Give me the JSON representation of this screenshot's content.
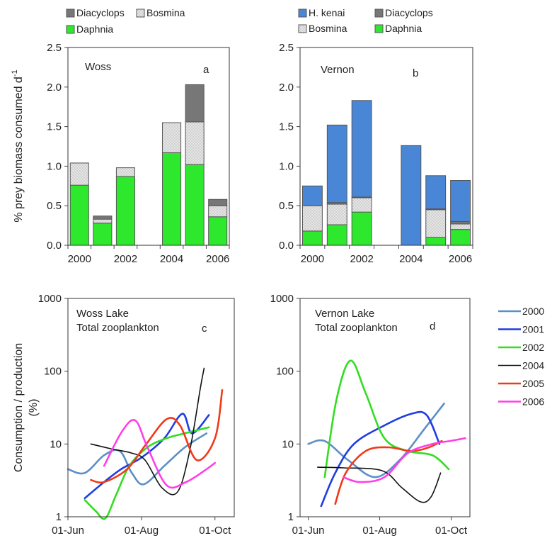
{
  "chart_data": [
    {
      "id": "a",
      "type": "bar",
      "stacked": true,
      "annotation": "Woss",
      "panel_letter": "a",
      "ylabel": "% prey biomass consumed d",
      "ylabel_sup": "-1",
      "ylim": [
        0,
        2.5
      ],
      "yticks": [
        "0.0",
        "0.5",
        "1.0",
        "1.5",
        "2.0",
        "2.5"
      ],
      "xlabels": [
        "2000",
        "2002",
        "2004",
        "2006"
      ],
      "categories": [
        "2000",
        "2001",
        "2002",
        "2003",
        "2004",
        "2005",
        "2006"
      ],
      "legend": [
        {
          "name": "Diacyclops",
          "key": "diacyclops"
        },
        {
          "name": "Bosmina",
          "key": "bosmina"
        },
        {
          "name": "Daphnia",
          "key": "daphnia"
        }
      ],
      "series": [
        {
          "name": "Daphnia",
          "key": "daphnia",
          "values": [
            0.76,
            0.28,
            0.87,
            0,
            1.17,
            1.02,
            0.36
          ]
        },
        {
          "name": "Bosmina",
          "key": "bosmina",
          "values": [
            0.28,
            0.05,
            0.11,
            0,
            0.38,
            0.54,
            0.14
          ]
        },
        {
          "name": "Diacyclops",
          "key": "diacyclops",
          "values": [
            0,
            0.04,
            0,
            0,
            0,
            0.47,
            0.08
          ]
        }
      ]
    },
    {
      "id": "b",
      "type": "bar",
      "stacked": true,
      "annotation": "Vernon",
      "panel_letter": "b",
      "ylim": [
        0,
        2.5
      ],
      "yticks": [
        "0.0",
        "0.5",
        "1.0",
        "1.5",
        "2.0",
        "2.5"
      ],
      "xlabels": [
        "2000",
        "2002",
        "2004",
        "2006"
      ],
      "categories": [
        "2000",
        "2001",
        "2002",
        "2003",
        "2004",
        "2005",
        "2006"
      ],
      "legend": [
        {
          "name": "H. kenai",
          "key": "hkenai"
        },
        {
          "name": "Diacyclops",
          "key": "diacyclops"
        },
        {
          "name": "Bosmina",
          "key": "bosmina"
        },
        {
          "name": "Daphnia",
          "key": "daphnia"
        }
      ],
      "series": [
        {
          "name": "Daphnia",
          "key": "daphnia",
          "values": [
            0.18,
            0.26,
            0.42,
            0,
            0,
            0.1,
            0.2
          ]
        },
        {
          "name": "Bosmina",
          "key": "bosmina",
          "values": [
            0.32,
            0.26,
            0.18,
            0,
            0,
            0.35,
            0.07
          ]
        },
        {
          "name": "Diacyclops",
          "key": "diacyclops",
          "values": [
            0,
            0.02,
            0.01,
            0,
            0,
            0.01,
            0.03
          ]
        },
        {
          "name": "H. kenai",
          "key": "hkenai",
          "values": [
            0.25,
            0.98,
            1.22,
            0,
            1.26,
            0.42,
            0.52
          ]
        }
      ]
    },
    {
      "id": "c",
      "type": "line",
      "yscale": "log",
      "annotation": [
        "Woss Lake",
        "Total zooplankton"
      ],
      "panel_letter": "c",
      "ylabel": "Consumption / production",
      "ylabel2": "(%)",
      "ylim": [
        1,
        1000
      ],
      "yticks": [
        "1",
        "10",
        "100",
        "1000"
      ],
      "xticks": [
        "01-Jun",
        "01-Aug",
        "01-Oct"
      ],
      "x_range": [
        "2000-06-01",
        "2000-10-17"
      ],
      "series": [
        {
          "name": "2000",
          "color": "#5b8fc7",
          "points": [
            [
              "2000-06-01",
              4.5
            ],
            [
              "2000-06-15",
              4
            ],
            [
              "2000-07-01",
              7
            ],
            [
              "2000-07-14",
              8
            ],
            [
              "2000-07-24",
              4
            ],
            [
              "2000-08-03",
              2.8
            ],
            [
              "2000-08-20",
              5
            ],
            [
              "2000-09-06",
              9
            ],
            [
              "2000-09-24",
              14
            ]
          ]
        },
        {
          "name": "2001",
          "color": "#1f3de0",
          "points": [
            [
              "2000-06-15",
              1.8
            ],
            [
              "2000-07-01",
              3
            ],
            [
              "2000-07-15",
              4.5
            ],
            [
              "2000-08-01",
              6.5
            ],
            [
              "2000-08-20",
              12
            ],
            [
              "2000-09-04",
              26
            ],
            [
              "2000-09-12",
              14
            ],
            [
              "2000-09-26",
              25
            ]
          ]
        },
        {
          "name": "2002",
          "color": "#33dd22",
          "points": [
            [
              "2000-06-15",
              1.7
            ],
            [
              "2000-06-24",
              1.2
            ],
            [
              "2000-07-02",
              0.95
            ],
            [
              "2000-07-11",
              2
            ],
            [
              "2000-07-22",
              5
            ],
            [
              "2000-08-06",
              9
            ],
            [
              "2000-08-22",
              12
            ],
            [
              "2000-09-06",
              14
            ],
            [
              "2000-09-26",
              17
            ]
          ]
        },
        {
          "name": "2004",
          "color": "#111111",
          "points": [
            [
              "2000-06-20",
              10
            ],
            [
              "2000-07-08",
              8.5
            ],
            [
              "2000-07-24",
              7.5
            ],
            [
              "2000-08-04",
              6
            ],
            [
              "2000-08-18",
              2.5
            ],
            [
              "2000-08-31",
              2.2
            ],
            [
              "2000-09-10",
              8
            ],
            [
              "2000-09-19",
              60
            ],
            [
              "2000-09-22",
              110
            ]
          ]
        },
        {
          "name": "2005",
          "color": "#f03a1a",
          "points": [
            [
              "2000-06-20",
              3.2
            ],
            [
              "2000-07-01",
              3
            ],
            [
              "2000-07-20",
              4.5
            ],
            [
              "2000-08-05",
              10
            ],
            [
              "2000-08-22",
              22
            ],
            [
              "2000-09-02",
              18
            ],
            [
              "2000-09-16",
              6
            ],
            [
              "2000-10-01",
              12
            ],
            [
              "2000-10-07",
              55
            ]
          ]
        },
        {
          "name": "2006",
          "color": "#ff3ee8",
          "points": [
            [
              "2000-07-01",
              5
            ],
            [
              "2000-07-16",
              15
            ],
            [
              "2000-07-27",
              21
            ],
            [
              "2000-08-06",
              9
            ],
            [
              "2000-08-22",
              2.7
            ],
            [
              "2000-09-07",
              3
            ],
            [
              "2000-09-24",
              4.5
            ],
            [
              "2000-10-01",
              5.5
            ]
          ]
        }
      ]
    },
    {
      "id": "d",
      "type": "line",
      "yscale": "log",
      "annotation": [
        "Vernon Lake",
        "Total zooplankton"
      ],
      "panel_letter": "d",
      "ylim": [
        1,
        1000
      ],
      "yticks": [
        "1",
        "10",
        "100",
        "1000"
      ],
      "xticks": [
        "01-Jun",
        "01-Aug",
        "01-Oct"
      ],
      "x_range": [
        "2000-05-25",
        "2000-10-17"
      ],
      "legend": [
        "2000",
        "2001",
        "2002",
        "2004",
        "2005",
        "2006"
      ],
      "series": [
        {
          "name": "2000",
          "color": "#5b8fc7",
          "points": [
            [
              "2000-06-01",
              10
            ],
            [
              "2000-06-15",
              11
            ],
            [
              "2000-07-05",
              6
            ],
            [
              "2000-07-28",
              3.5
            ],
            [
              "2000-08-18",
              6
            ],
            [
              "2000-09-08",
              16
            ],
            [
              "2000-09-25",
              36
            ]
          ]
        },
        {
          "name": "2001",
          "color": "#1f3de0",
          "points": [
            [
              "2000-06-12",
              1.4
            ],
            [
              "2000-06-24",
              4
            ],
            [
              "2000-07-10",
              10
            ],
            [
              "2000-08-05",
              18
            ],
            [
              "2000-08-28",
              26
            ],
            [
              "2000-09-10",
              25
            ],
            [
              "2000-09-21",
              10
            ]
          ]
        },
        {
          "name": "2002",
          "color": "#33dd22",
          "points": [
            [
              "2000-06-15",
              3.5
            ],
            [
              "2000-06-25",
              40
            ],
            [
              "2000-07-07",
              140
            ],
            [
              "2000-07-20",
              50
            ],
            [
              "2000-08-05",
              12
            ],
            [
              "2000-08-25",
              8
            ],
            [
              "2000-09-15",
              7
            ],
            [
              "2000-09-29",
              4.5
            ]
          ]
        },
        {
          "name": "2004",
          "color": "#111111",
          "points": [
            [
              "2000-06-09",
              4.8
            ],
            [
              "2000-07-01",
              4.7
            ],
            [
              "2000-08-03",
              4.3
            ],
            [
              "2000-08-20",
              2.5
            ],
            [
              "2000-09-05",
              1.6
            ],
            [
              "2000-09-14",
              1.9
            ],
            [
              "2000-09-22",
              4
            ]
          ]
        },
        {
          "name": "2005",
          "color": "#f03a1a",
          "points": [
            [
              "2000-06-24",
              1.5
            ],
            [
              "2000-07-03",
              4
            ],
            [
              "2000-07-20",
              8
            ],
            [
              "2000-08-08",
              9
            ],
            [
              "2000-08-28",
              8
            ],
            [
              "2000-09-12",
              9
            ],
            [
              "2000-09-23",
              11
            ]
          ]
        },
        {
          "name": "2006",
          "color": "#ff3ee8",
          "points": [
            [
              "2000-07-01",
              3.5
            ],
            [
              "2000-07-15",
              3
            ],
            [
              "2000-08-05",
              3.5
            ],
            [
              "2000-08-25",
              7.5
            ],
            [
              "2000-09-15",
              10
            ],
            [
              "2000-09-30",
              11
            ],
            [
              "2000-10-13",
              12
            ]
          ]
        }
      ]
    }
  ],
  "colors": {
    "daphnia": "#2ee82e",
    "bosmina": "#e4e4e4",
    "diacyclops": "#777777",
    "hkenai": "#4a86d6"
  }
}
